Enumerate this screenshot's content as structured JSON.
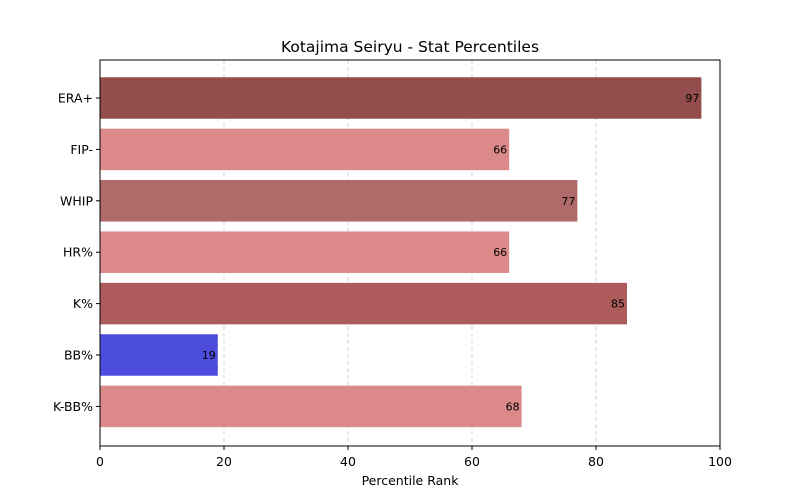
{
  "chart_data": {
    "type": "bar",
    "orientation": "horizontal",
    "title": "Kotajima Seiryu - Stat Percentiles",
    "xlabel": "Percentile Rank",
    "ylabel": "",
    "xlim": [
      0,
      100
    ],
    "xticks": [
      0,
      20,
      40,
      60,
      80,
      100
    ],
    "grid": "vertical dashed",
    "categories": [
      "ERA+",
      "FIP-",
      "WHIP",
      "HR%",
      "K%",
      "BB%",
      "K-BB%"
    ],
    "values": [
      97,
      66,
      77,
      66,
      85,
      19,
      68
    ],
    "colors": [
      "#934d4d",
      "#dc8a89",
      "#af6a69",
      "#dc8a89",
      "#ae5b5b",
      "#4d4ddd",
      "#dc8a89"
    ]
  }
}
